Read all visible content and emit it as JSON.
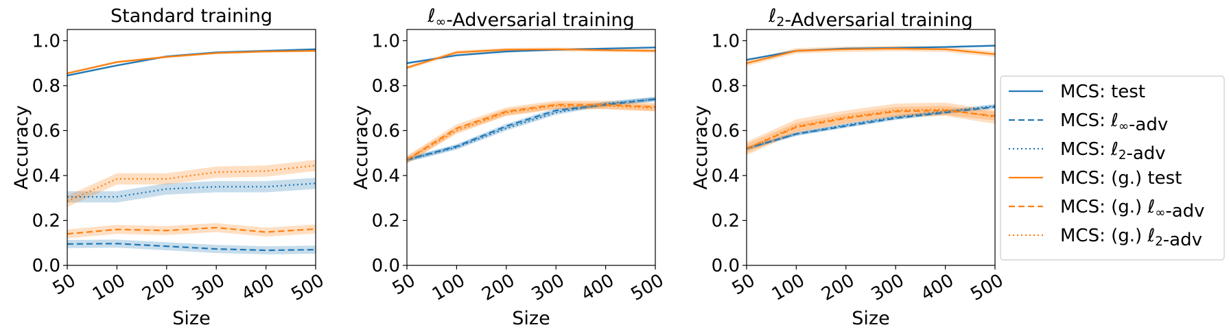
{
  "legend": {
    "placement": "right",
    "entries": [
      {
        "label": "MCS: test",
        "color": "#1f77b4",
        "style": "solid"
      },
      {
        "label": "MCS: ℓ∞-adv",
        "color": "#1f77b4",
        "style": "dashed"
      },
      {
        "label": "MCS: ℓ2-adv",
        "color": "#1f77b4",
        "style": "dotted"
      },
      {
        "label": "MCS: (g.) test",
        "color": "#ff7f0e",
        "style": "solid"
      },
      {
        "label": "MCS: (g.) ℓ∞-adv",
        "color": "#ff7f0e",
        "style": "dashed"
      },
      {
        "label": "MCS: (g.) ℓ2-adv",
        "color": "#ff7f0e",
        "style": "dotted"
      }
    ]
  },
  "chart_data": [
    {
      "type": "line",
      "title": "Standard training",
      "xlabel": "Size",
      "ylabel": "Accuracy",
      "categories": [
        "50",
        "100",
        "200",
        "300",
        "400",
        "500"
      ],
      "ylim": [
        0,
        1.05
      ],
      "yticks": [
        "0.0",
        "0.2",
        "0.4",
        "0.6",
        "0.8",
        "1.0"
      ],
      "series": [
        {
          "name": "MCS: test",
          "color": "#1f77b4",
          "style": "solid",
          "values": [
            0.845,
            0.89,
            0.93,
            0.948,
            0.955,
            0.962
          ],
          "band": 0.005
        },
        {
          "name": "MCS: ℓ∞-adv",
          "color": "#1f77b4",
          "style": "dashed",
          "values": [
            0.095,
            0.097,
            0.085,
            0.073,
            0.067,
            0.07
          ],
          "band": 0.018
        },
        {
          "name": "MCS: ℓ2-adv",
          "color": "#1f77b4",
          "style": "dotted",
          "values": [
            0.305,
            0.305,
            0.34,
            0.35,
            0.35,
            0.365
          ],
          "band": 0.025
        },
        {
          "name": "MCS: (g.) test",
          "color": "#ff7f0e",
          "style": "solid",
          "values": [
            0.855,
            0.905,
            0.928,
            0.945,
            0.952,
            0.955
          ],
          "band": 0.005
        },
        {
          "name": "MCS: (g.) ℓ∞-adv",
          "color": "#ff7f0e",
          "style": "dashed",
          "values": [
            0.14,
            0.16,
            0.155,
            0.168,
            0.148,
            0.162
          ],
          "band": 0.02
        },
        {
          "name": "MCS: (g.) ℓ2-adv",
          "color": "#ff7f0e",
          "style": "dotted",
          "values": [
            0.285,
            0.385,
            0.385,
            0.415,
            0.42,
            0.445
          ],
          "band": 0.025
        }
      ]
    },
    {
      "type": "line",
      "title": "ℓ∞-Adversarial training",
      "xlabel": "Size",
      "ylabel": "Accuracy",
      "categories": [
        "50",
        "100",
        "200",
        "300",
        "400",
        "500"
      ],
      "ylim": [
        0,
        1.05
      ],
      "yticks": [
        "0.0",
        "0.2",
        "0.4",
        "0.6",
        "0.8",
        "1.0"
      ],
      "series": [
        {
          "name": "MCS: test",
          "color": "#1f77b4",
          "style": "solid",
          "values": [
            0.9,
            0.935,
            0.952,
            0.96,
            0.965,
            0.97
          ],
          "band": 0.005
        },
        {
          "name": "MCS: ℓ∞-adv",
          "color": "#1f77b4",
          "style": "dashed",
          "values": [
            0.47,
            0.53,
            0.62,
            0.69,
            0.715,
            0.74
          ],
          "band": 0.01
        },
        {
          "name": "MCS: ℓ2-adv",
          "color": "#1f77b4",
          "style": "dotted",
          "values": [
            0.47,
            0.525,
            0.61,
            0.68,
            0.72,
            0.74
          ],
          "band": 0.01
        },
        {
          "name": "MCS: (g.) test",
          "color": "#ff7f0e",
          "style": "solid",
          "values": [
            0.88,
            0.948,
            0.96,
            0.962,
            0.958,
            0.955
          ],
          "band": 0.008
        },
        {
          "name": "MCS: (g.) ℓ∞-adv",
          "color": "#ff7f0e",
          "style": "dashed",
          "values": [
            0.47,
            0.61,
            0.685,
            0.715,
            0.715,
            0.705
          ],
          "band": 0.018
        },
        {
          "name": "MCS: (g.) ℓ2-adv",
          "color": "#ff7f0e",
          "style": "dotted",
          "values": [
            0.47,
            0.6,
            0.68,
            0.71,
            0.71,
            0.7
          ],
          "band": 0.015
        }
      ]
    },
    {
      "type": "line",
      "title": "ℓ2-Adversarial training",
      "xlabel": "Size",
      "ylabel": "Accuracy",
      "categories": [
        "50",
        "100",
        "200",
        "300",
        "400",
        "500"
      ],
      "ylim": [
        0,
        1.05
      ],
      "yticks": [
        "0.0",
        "0.2",
        "0.4",
        "0.6",
        "0.8",
        "1.0"
      ],
      "series": [
        {
          "name": "MCS: test",
          "color": "#1f77b4",
          "style": "solid",
          "values": [
            0.915,
            0.955,
            0.965,
            0.968,
            0.972,
            0.978
          ],
          "band": 0.005
        },
        {
          "name": "MCS: ℓ∞-adv",
          "color": "#1f77b4",
          "style": "dashed",
          "values": [
            0.52,
            0.585,
            0.62,
            0.655,
            0.68,
            0.705
          ],
          "band": 0.008
        },
        {
          "name": "MCS: ℓ2-adv",
          "color": "#1f77b4",
          "style": "dotted",
          "values": [
            0.52,
            0.585,
            0.625,
            0.66,
            0.685,
            0.71
          ],
          "band": 0.008
        },
        {
          "name": "MCS: (g.) test",
          "color": "#ff7f0e",
          "style": "solid",
          "values": [
            0.9,
            0.955,
            0.962,
            0.965,
            0.962,
            0.94
          ],
          "band": 0.012
        },
        {
          "name": "MCS: (g.) ℓ∞-adv",
          "color": "#ff7f0e",
          "style": "dashed",
          "values": [
            0.52,
            0.615,
            0.655,
            0.685,
            0.69,
            0.665
          ],
          "band": 0.02
        },
        {
          "name": "MCS: (g.) ℓ2-adv",
          "color": "#ff7f0e",
          "style": "dotted",
          "values": [
            0.52,
            0.62,
            0.66,
            0.69,
            0.695,
            0.66
          ],
          "band": 0.03
        }
      ]
    }
  ]
}
